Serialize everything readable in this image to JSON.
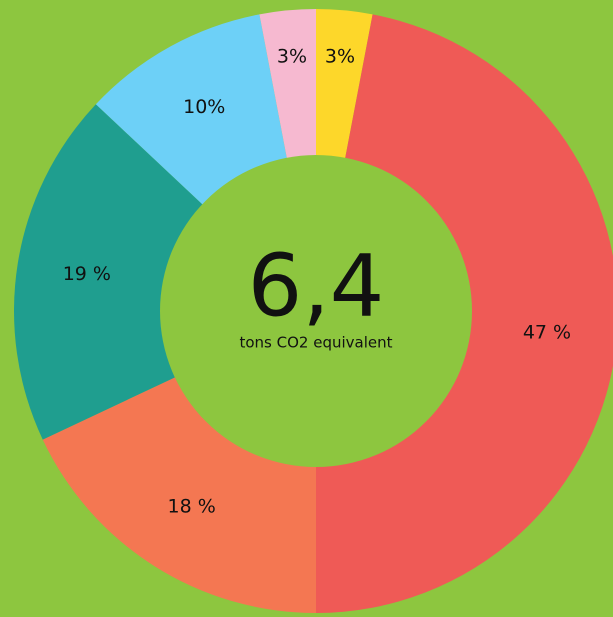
{
  "chart_data": {
    "type": "donut",
    "center_value": "6,4",
    "center_label": "tons CO2 equivalent",
    "values": [
      3,
      47,
      18,
      19,
      10,
      3
    ],
    "value_labels": [
      "3%",
      "47 %",
      "18 %",
      "19 %",
      "10%",
      "3%"
    ],
    "colors": [
      "#fdd72a",
      "#ef5a56",
      "#f47752",
      "#1f9e8f",
      "#6dd0f7",
      "#f6b9d0"
    ],
    "background": "#8dc63f"
  }
}
